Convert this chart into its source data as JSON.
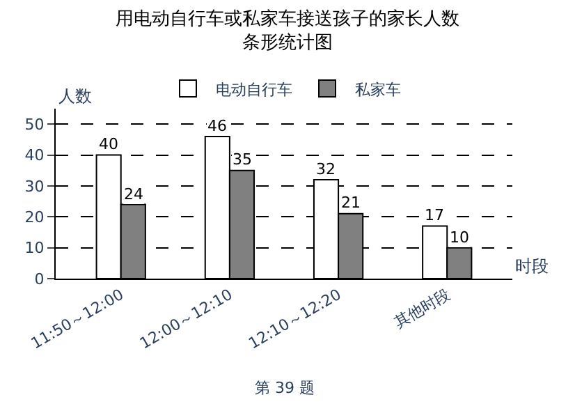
{
  "chart_data": {
    "type": "bar",
    "title": "用电动自行车或私家车接送孩子的家长人数",
    "subtitle": "条形统计图",
    "xlabel": "时段",
    "ylabel": "人数",
    "categories": [
      "11:50～12:00",
      "12:00～12:10",
      "12:10～12:20",
      "其他时段"
    ],
    "series": [
      {
        "name": "电动自行车",
        "color": "#ffffff",
        "values": [
          40,
          46,
          32,
          17
        ]
      },
      {
        "name": "私家车",
        "color": "#808080",
        "values": [
          24,
          35,
          21,
          10
        ]
      }
    ],
    "ylim": [
      0,
      55
    ],
    "yticks": [
      0,
      10,
      20,
      30,
      40,
      50
    ],
    "grid": "y",
    "legend": "top",
    "data_labels": true,
    "annotations": [
      "第 39 题"
    ]
  }
}
